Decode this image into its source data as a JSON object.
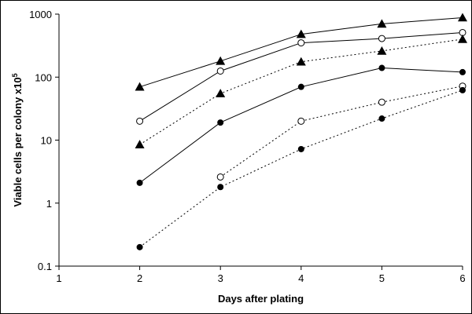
{
  "chart_data": {
    "type": "line",
    "title": "",
    "xlabel": "Days after plating",
    "ylabel": "Viable cells per colony x10",
    "ylabel_superscript": "5",
    "xlim": [
      1,
      6
    ],
    "ylim": [
      0.1,
      1000
    ],
    "y_scale": "log",
    "x_ticks": [
      "1",
      "2",
      "3",
      "4",
      "5",
      "6"
    ],
    "y_ticks": [
      "0.1",
      "1",
      "10",
      "100",
      "1000"
    ],
    "grid": false,
    "legend": "none",
    "series": [
      {
        "marker": "triangle",
        "line": "solid",
        "x": [
          2,
          3,
          4,
          5,
          6
        ],
        "values": [
          70,
          180,
          480,
          700,
          880
        ]
      },
      {
        "marker": "open-circle",
        "line": "solid",
        "x": [
          2,
          3,
          4,
          5,
          6
        ],
        "values": [
          20,
          125,
          350,
          410,
          510
        ]
      },
      {
        "marker": "triangle",
        "line": "dotted",
        "x": [
          2,
          3,
          4,
          5,
          6
        ],
        "values": [
          8.5,
          55,
          175,
          260,
          400
        ]
      },
      {
        "marker": "filled-circle",
        "line": "solid",
        "x": [
          2,
          3,
          4,
          5,
          6
        ],
        "values": [
          2.1,
          19,
          70,
          140,
          120
        ]
      },
      {
        "marker": "open-circle",
        "line": "dotted",
        "x": [
          3,
          4,
          5,
          6
        ],
        "values": [
          2.6,
          20,
          40,
          72
        ]
      },
      {
        "marker": "filled-circle",
        "line": "dotted",
        "x": [
          2,
          3,
          4,
          5,
          6
        ],
        "values": [
          0.2,
          1.8,
          7.2,
          22,
          62
        ]
      }
    ]
  }
}
